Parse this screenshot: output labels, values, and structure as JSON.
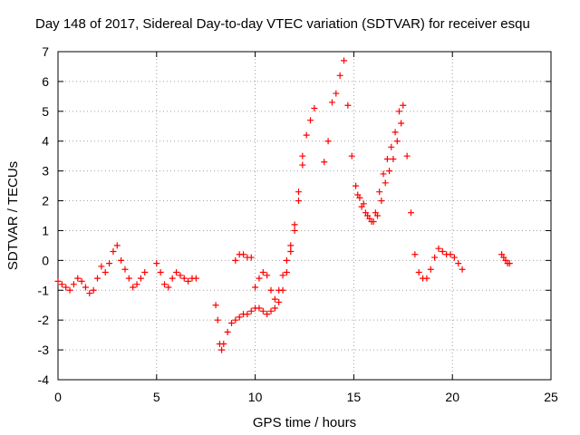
{
  "chart_data": {
    "type": "scatter",
    "title": "Day 148 of 2017, Sidereal Day-to-day VTEC variation (SDTVAR) for receiver esqu",
    "xlabel": "GPS time / hours",
    "ylabel": "SDTVAR / TECUs",
    "xlim": [
      0,
      25
    ],
    "ylim": [
      -4,
      7
    ],
    "xticks": [
      0,
      5,
      10,
      15,
      20,
      25
    ],
    "yticks": [
      -4,
      -3,
      -2,
      -1,
      0,
      1,
      2,
      3,
      4,
      5,
      6,
      7
    ],
    "grid": true,
    "marker": "+",
    "color": "#ff0000",
    "series": [
      {
        "name": "SDTVAR",
        "x": [
          0.0,
          0.2,
          0.4,
          0.6,
          0.8,
          1.0,
          1.2,
          1.4,
          1.6,
          1.8,
          2.0,
          2.2,
          2.4,
          2.6,
          2.8,
          3.0,
          3.2,
          3.4,
          3.6,
          3.8,
          4.0,
          4.2,
          4.4,
          5.0,
          5.2,
          5.4,
          5.6,
          5.8,
          6.0,
          6.2,
          6.4,
          6.6,
          6.8,
          7.0,
          8.0,
          8.1,
          8.2,
          8.3,
          8.4,
          8.6,
          8.8,
          9.0,
          9.2,
          9.4,
          9.6,
          9.8,
          10.0,
          10.2,
          10.4,
          10.6,
          10.8,
          11.0,
          11.2,
          11.4,
          11.6,
          11.8,
          12.0,
          12.2,
          12.4,
          12.6,
          12.8,
          13.0,
          9.0,
          9.2,
          9.4,
          9.6,
          9.8,
          10.0,
          10.2,
          10.4,
          10.6,
          10.8,
          11.0,
          11.2,
          11.4,
          11.6,
          11.8,
          12.0,
          12.2,
          12.4,
          13.5,
          13.7,
          13.9,
          14.1,
          14.3,
          14.5,
          14.7,
          14.9,
          15.1,
          15.3,
          15.5,
          15.7,
          15.9,
          16.1,
          16.3,
          16.5,
          16.7,
          16.9,
          17.1,
          17.3,
          17.5,
          17.7,
          17.9,
          18.1,
          18.3,
          18.5,
          18.7,
          18.9,
          19.1,
          19.3,
          19.5,
          19.7,
          19.9,
          20.1,
          20.3,
          20.5,
          15.2,
          15.4,
          15.6,
          15.8,
          16.0,
          16.2,
          16.4,
          16.6,
          16.8,
          17.0,
          17.2,
          17.4,
          22.5,
          22.6,
          22.7,
          22.8,
          22.9
        ],
        "y": [
          -0.7,
          -0.8,
          -0.9,
          -1.0,
          -0.8,
          -0.6,
          -0.7,
          -0.9,
          -1.1,
          -1.0,
          -0.6,
          -0.2,
          -0.4,
          -0.1,
          0.3,
          0.5,
          0.0,
          -0.3,
          -0.6,
          -0.9,
          -0.8,
          -0.6,
          -0.4,
          -0.1,
          -0.4,
          -0.8,
          -0.9,
          -0.6,
          -0.4,
          -0.5,
          -0.6,
          -0.7,
          -0.6,
          -0.6,
          -1.5,
          -2.0,
          -2.8,
          -3.0,
          -2.8,
          -2.4,
          -2.1,
          -2.0,
          -1.9,
          -1.8,
          -1.8,
          -1.7,
          -1.6,
          -1.6,
          -1.7,
          -1.8,
          -1.7,
          -1.6,
          -1.4,
          -1.0,
          -0.4,
          0.3,
          1.0,
          2.0,
          3.2,
          4.2,
          4.7,
          5.1,
          0.0,
          0.2,
          0.2,
          0.1,
          0.1,
          -0.9,
          -0.6,
          -0.4,
          -0.5,
          -1.0,
          -1.3,
          -1.0,
          -0.5,
          0.0,
          0.5,
          1.2,
          2.3,
          3.5,
          3.3,
          4.0,
          5.3,
          5.6,
          6.2,
          6.7,
          5.2,
          3.5,
          2.5,
          2.1,
          1.9,
          1.5,
          1.3,
          1.6,
          2.3,
          2.9,
          3.4,
          3.8,
          4.3,
          5.0,
          5.2,
          3.5,
          1.6,
          0.2,
          -0.4,
          -0.6,
          -0.6,
          -0.3,
          0.1,
          0.4,
          0.3,
          0.2,
          0.2,
          0.1,
          -0.1,
          -0.3,
          2.2,
          1.8,
          1.6,
          1.4,
          1.3,
          1.5,
          2.0,
          2.6,
          3.0,
          3.4,
          4.0,
          4.6,
          0.2,
          0.1,
          0.0,
          -0.1,
          -0.1
        ]
      }
    ]
  }
}
